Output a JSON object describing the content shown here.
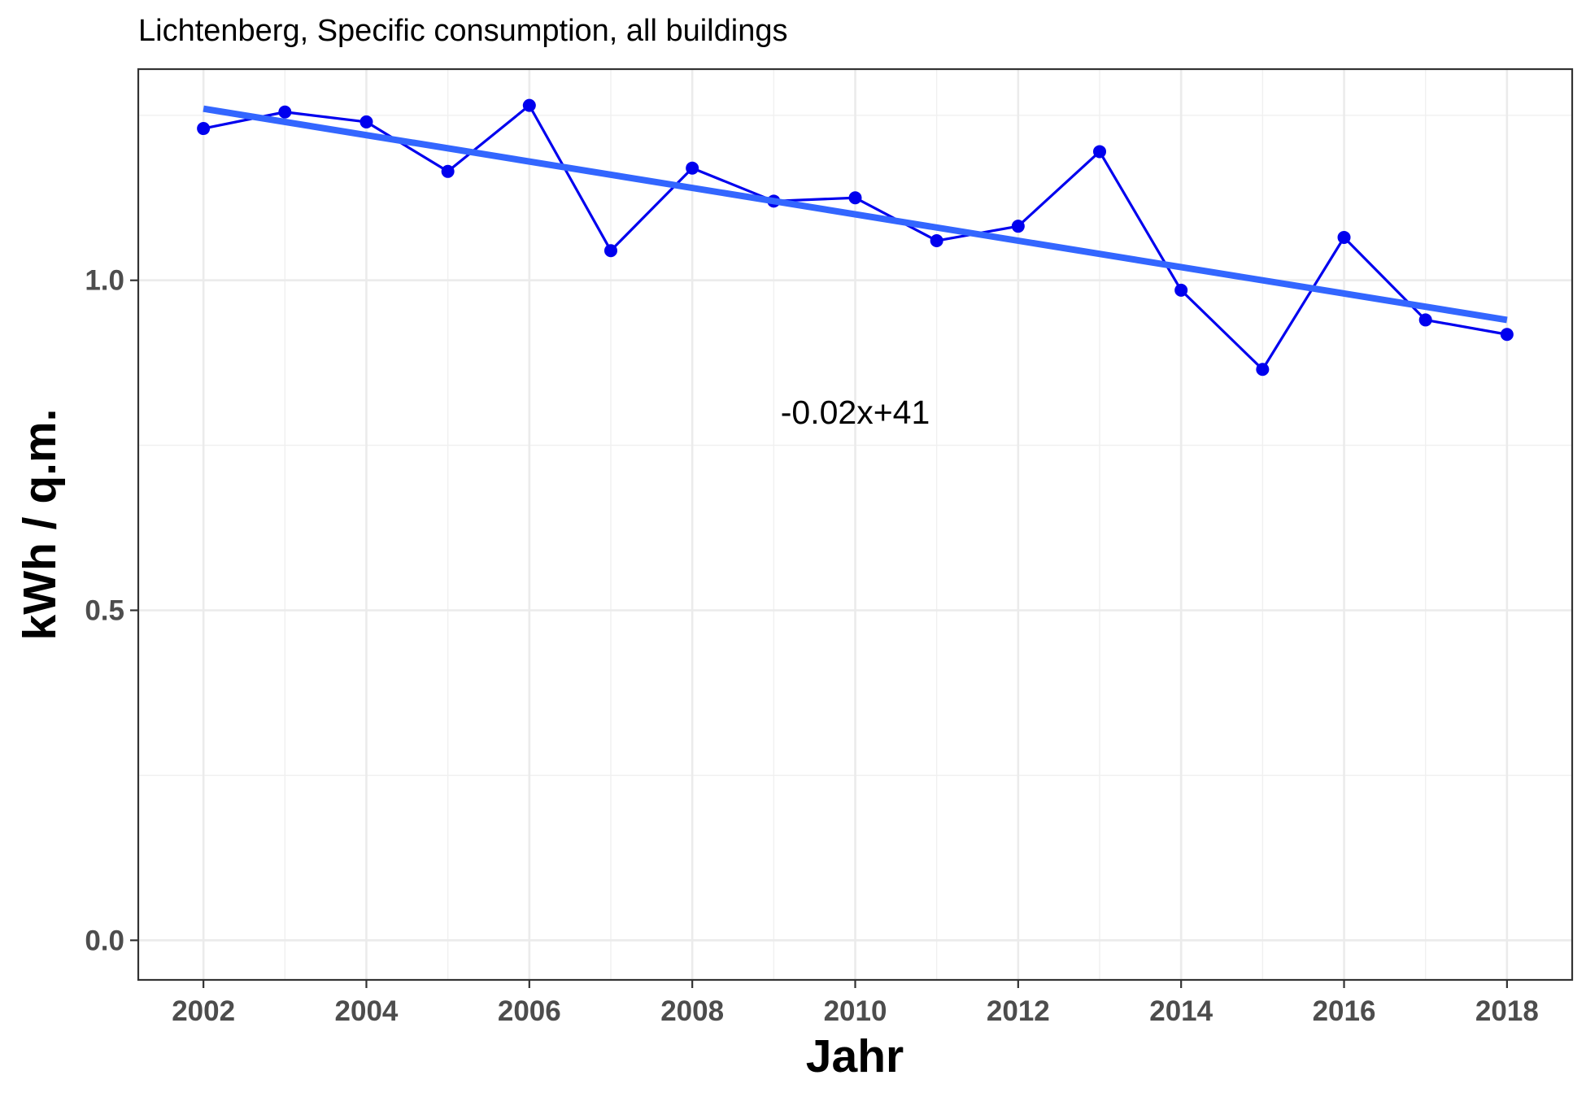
{
  "chart_data": {
    "type": "line",
    "title": "Lichtenberg, Specific consumption, all buildings",
    "xlabel": "Jahr",
    "ylabel": "kWh / q.m.",
    "x_ticks": [
      2002,
      2004,
      2006,
      2008,
      2010,
      2012,
      2014,
      2016,
      2018
    ],
    "y_ticks": [
      "0.0",
      "0.5",
      "1.0"
    ],
    "xlim": [
      2001.2,
      2018.8
    ],
    "ylim": [
      -0.06,
      1.32
    ],
    "grid": true,
    "series": [
      {
        "color": "#0000ee",
        "marker": "circle",
        "x": [
          2002,
          2003,
          2004,
          2005,
          2006,
          2007,
          2008,
          2009,
          2010,
          2011,
          2012,
          2013,
          2014,
          2015,
          2016,
          2017,
          2018
        ],
        "y": [
          1.23,
          1.255,
          1.24,
          1.165,
          1.265,
          1.045,
          1.17,
          1.12,
          1.125,
          1.06,
          1.082,
          1.195,
          0.985,
          0.865,
          1.065,
          0.94,
          0.918
        ]
      }
    ],
    "trendline": {
      "color": "#3366ff",
      "x": [
        2002,
        2018
      ],
      "y": [
        1.26,
        0.94
      ]
    },
    "annotations": [
      {
        "text": "-0.02x+41",
        "x": 2010,
        "y": 0.8
      }
    ]
  }
}
